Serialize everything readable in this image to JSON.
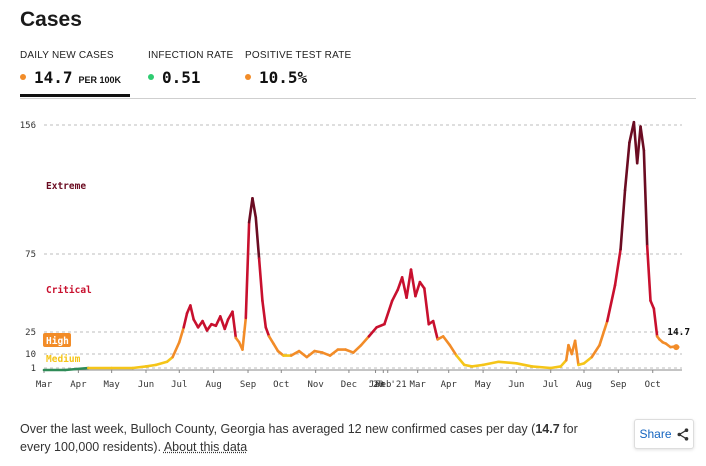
{
  "title": "Cases",
  "tabs": [
    {
      "label": "DAILY NEW CASES",
      "value": "14.7",
      "unit": "PER 100K",
      "dot_color": "#f28c28",
      "active": true
    },
    {
      "label": "INFECTION RATE",
      "value": "0.51",
      "unit": "",
      "dot_color": "#2ecc71",
      "active": false
    },
    {
      "label": "POSITIVE TEST RATE",
      "value": "10.5%",
      "unit": "",
      "dot_color": "#f28c28",
      "active": false
    }
  ],
  "footer": {
    "text_before": "Over the last week, Bulloch County, Georgia has averaged 12 new confirmed cases per day (",
    "highlight": "14.7",
    "text_after": " for every 100,000 residents). ",
    "link": "About this data"
  },
  "share_label": "Share",
  "colors": {
    "extreme": "#6b0c22",
    "critical": "#c8102e",
    "high": "#f28c28",
    "medium": "#f5c518",
    "low": "#2e8b57"
  },
  "chart_data": {
    "type": "line",
    "title": "",
    "xlabel": "",
    "ylabel": "",
    "ylim": [
      0,
      165
    ],
    "y_ticks": [
      1,
      10,
      25,
      75,
      156
    ],
    "x_ticks": [
      "Mar",
      "Apr",
      "May",
      "Jun",
      "Jul",
      "Aug",
      "Sep",
      "Oct",
      "Nov",
      "Dec",
      "'20",
      "Jan '21",
      "Feb",
      "Mar",
      "Apr",
      "May",
      "Jun",
      "Jul",
      "Aug",
      "Sep",
      "Oct"
    ],
    "grid": true,
    "zones": [
      {
        "label": "Extreme",
        "min": 75
      },
      {
        "label": "Critical",
        "min": 25
      },
      {
        "label": "High",
        "min": 10
      },
      {
        "label": "Medium",
        "min": 1
      }
    ],
    "current_label": "14.7",
    "series": [
      {
        "x": [
          "2020-03-01",
          "2020-03-20",
          "2020-04-10",
          "2020-05-01",
          "2020-05-20",
          "2020-06-01",
          "2020-06-10",
          "2020-06-20",
          "2020-06-25",
          "2020-07-01",
          "2020-07-05",
          "2020-07-08",
          "2020-07-11",
          "2020-07-14",
          "2020-07-18",
          "2020-07-22",
          "2020-07-26",
          "2020-07-30",
          "2020-08-03",
          "2020-08-07",
          "2020-08-11",
          "2020-08-14",
          "2020-08-18",
          "2020-08-21",
          "2020-08-24",
          "2020-08-27",
          "2020-08-30",
          "2020-09-02",
          "2020-09-05",
          "2020-09-08",
          "2020-09-11",
          "2020-09-14",
          "2020-09-17",
          "2020-09-20",
          "2020-09-24",
          "2020-09-28",
          "2020-10-03",
          "2020-10-10",
          "2020-10-17",
          "2020-10-24",
          "2020-10-31",
          "2020-11-07",
          "2020-11-14",
          "2020-11-21",
          "2020-11-28",
          "2020-12-05",
          "2020-12-12",
          "2020-12-19",
          "2020-12-26",
          "2021-01-02",
          "2021-01-09",
          "2021-01-14",
          "2021-01-18",
          "2021-01-22",
          "2021-01-26",
          "2021-01-30",
          "2021-02-03",
          "2021-02-07",
          "2021-02-11",
          "2021-02-15",
          "2021-02-19",
          "2021-02-24",
          "2021-03-02",
          "2021-03-08",
          "2021-03-15",
          "2021-03-22",
          "2021-04-01",
          "2021-04-15",
          "2021-05-01",
          "2021-05-15",
          "2021-06-01",
          "2021-06-10",
          "2021-06-15",
          "2021-06-17",
          "2021-06-20",
          "2021-06-23",
          "2021-06-26",
          "2021-07-01",
          "2021-07-08",
          "2021-07-15",
          "2021-07-22",
          "2021-07-29",
          "2021-08-03",
          "2021-08-07",
          "2021-08-11",
          "2021-08-15",
          "2021-08-18",
          "2021-08-21",
          "2021-08-24",
          "2021-08-27",
          "2021-08-30",
          "2021-09-02",
          "2021-09-05",
          "2021-09-07",
          "2021-09-10",
          "2021-09-13",
          "2021-09-17",
          "2021-09-20",
          "2021-09-24"
        ],
        "y": [
          0,
          0,
          1,
          1,
          1,
          2,
          3,
          5,
          8,
          18,
          28,
          37,
          42,
          33,
          28,
          32,
          26,
          30,
          29,
          35,
          27,
          33,
          38,
          21,
          18,
          13,
          34,
          95,
          110,
          98,
          72,
          45,
          28,
          22,
          17,
          12,
          9,
          9,
          12,
          8,
          12,
          11,
          9,
          13,
          13,
          11,
          16,
          22,
          28,
          30,
          45,
          52,
          60,
          47,
          65,
          48,
          57,
          53,
          30,
          32,
          20,
          22,
          16,
          9,
          3,
          2,
          3,
          5,
          4,
          2,
          1,
          2,
          6,
          16,
          10,
          19,
          3,
          4,
          8,
          16,
          32,
          55,
          78,
          115,
          145,
          158,
          132,
          155,
          140,
          80,
          45,
          40,
          22,
          20,
          18,
          17,
          14.7,
          15,
          14.7
        ]
      }
    ]
  }
}
